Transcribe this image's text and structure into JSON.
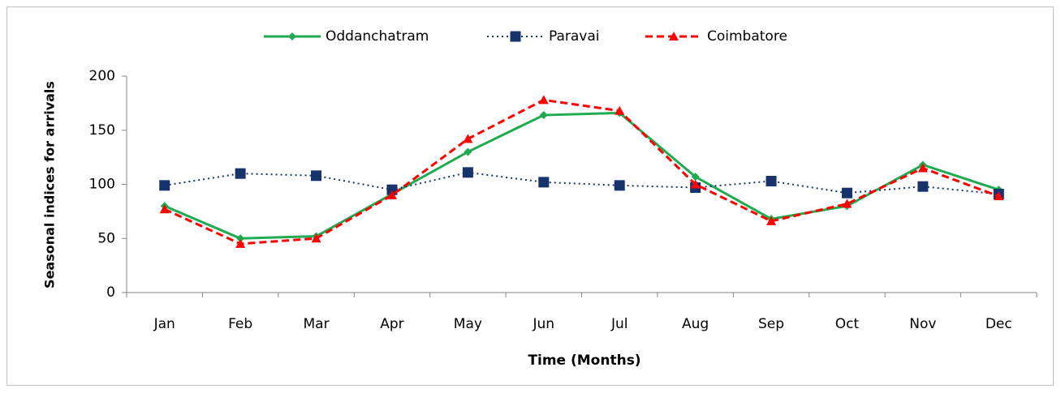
{
  "chart_data": {
    "type": "line",
    "y_label": "Seasonal indices for arrivals",
    "x_label": "Time (Months)",
    "categories": [
      "Jan",
      "Feb",
      "Mar",
      "Apr",
      "May",
      "Jun",
      "Jul",
      "Aug",
      "Sep",
      "Oct",
      "Nov",
      "Dec"
    ],
    "series": [
      {
        "name": "Oddanchatram",
        "color": "#1faa4f",
        "marker": "diamond",
        "dash": "solid",
        "values": [
          80,
          50,
          52,
          91,
          130,
          164,
          166,
          107,
          68,
          80,
          118,
          95
        ]
      },
      {
        "name": "Paravai",
        "color": "#17336b",
        "marker": "square",
        "dash": "dotted",
        "values": [
          99,
          110,
          108,
          95,
          111,
          102,
          99,
          97,
          103,
          92,
          98,
          91
        ]
      },
      {
        "name": "Coimbatore",
        "color": "#ff0000",
        "marker": "triangle",
        "dash": "dashed",
        "values": [
          77,
          45,
          50,
          90,
          142,
          178,
          168,
          100,
          66,
          82,
          115,
          89
        ]
      }
    ],
    "ylim": [
      0,
      200
    ],
    "yticks": [
      0,
      50,
      100,
      150,
      200
    ],
    "legend": "top"
  }
}
